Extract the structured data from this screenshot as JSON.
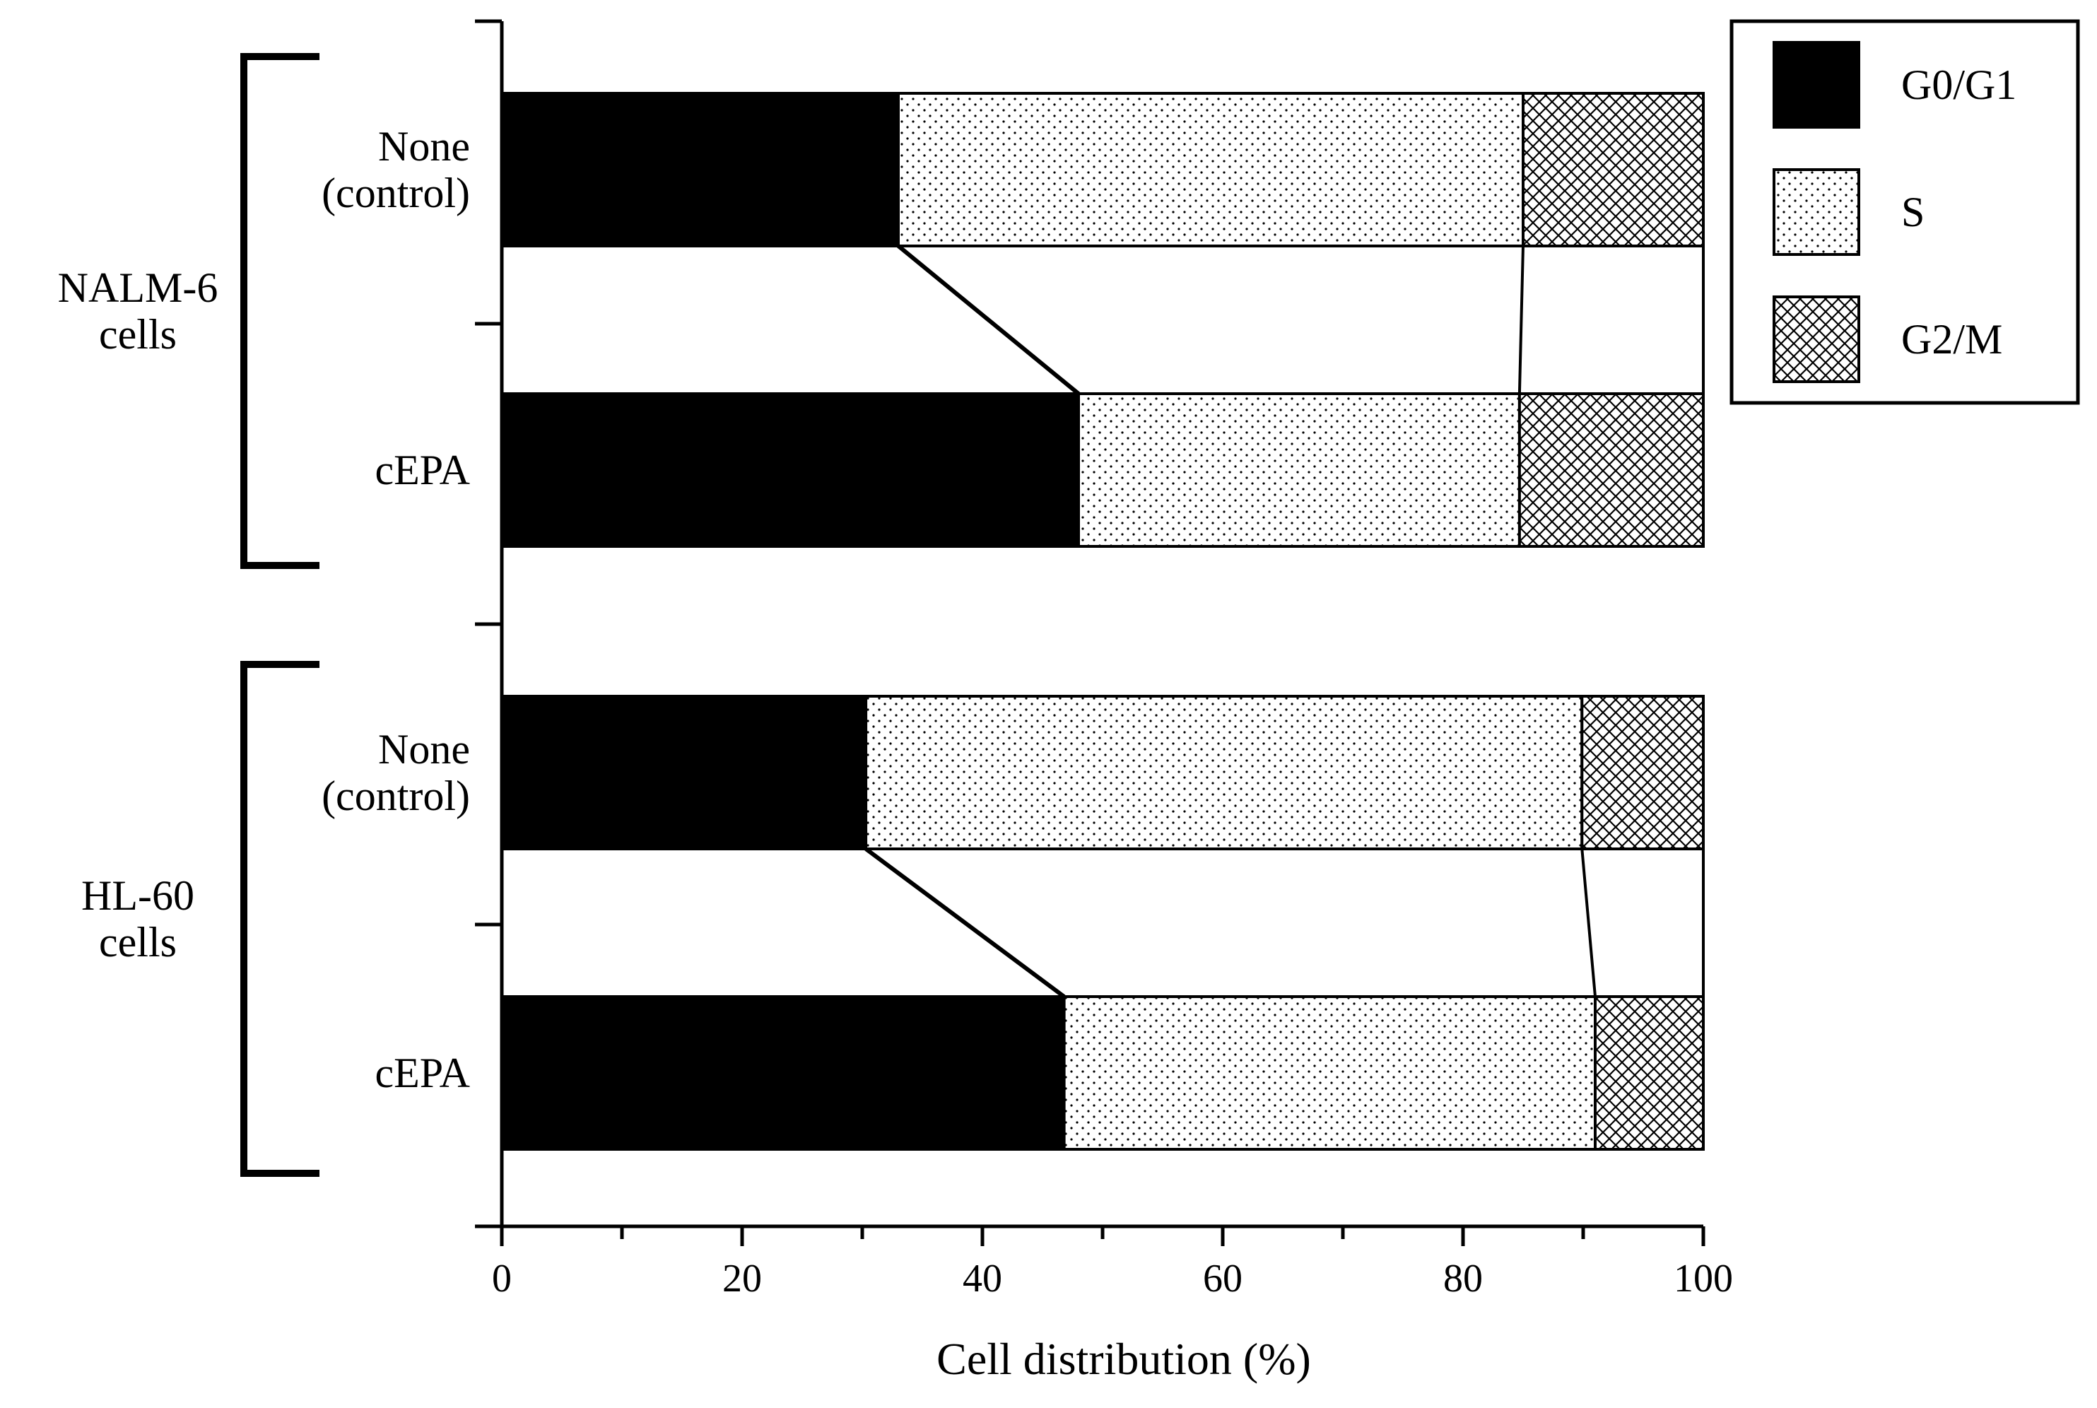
{
  "chart_data": {
    "type": "bar",
    "orientation": "horizontal",
    "stacked": true,
    "title": "",
    "xlabel": "Cell distribution (%)",
    "ylabel": "",
    "xlim": [
      0,
      100
    ],
    "xticks": [
      "0",
      "20",
      "40",
      "60",
      "80",
      "100"
    ],
    "groups": [
      {
        "name_lines": [
          "NALM-6",
          "cells"
        ],
        "bars": [
          {
            "label_lines": [
              "None",
              "(control)"
            ],
            "values": [
              33.0,
              52.0,
              15.0
            ]
          },
          {
            "label_lines": [
              "cEPA"
            ],
            "values": [
              48.0,
              36.7,
              15.3
            ]
          }
        ]
      },
      {
        "name_lines": [
          "HL-60",
          "cells"
        ],
        "bars": [
          {
            "label_lines": [
              "None",
              "(control)"
            ],
            "values": [
              30.3,
              59.6,
              10.1
            ]
          },
          {
            "label_lines": [
              "cEPA"
            ],
            "values": [
              46.8,
              44.2,
              9.0
            ]
          }
        ]
      }
    ],
    "series": [
      {
        "name": "G0/G1",
        "pattern": "solid",
        "color": "#000000"
      },
      {
        "name": "S",
        "pattern": "dots",
        "color": "#ffffff"
      },
      {
        "name": "G2/M",
        "pattern": "crosshatch",
        "color": "#ffffff"
      }
    ],
    "legend_position": "top-right",
    "connector_lines": true
  }
}
